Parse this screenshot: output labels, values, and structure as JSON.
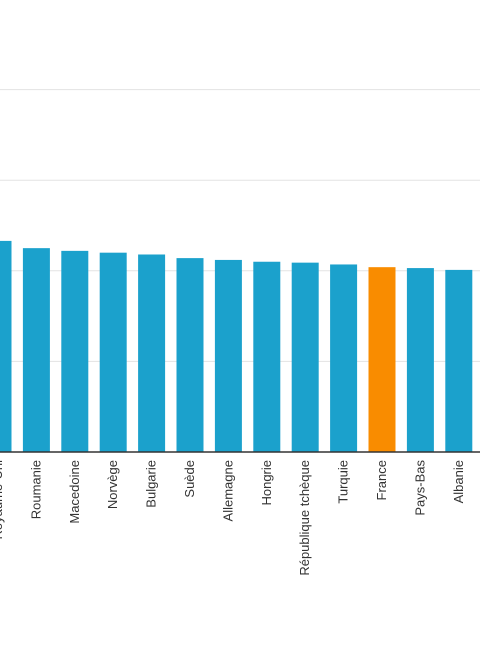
{
  "chart_data": {
    "type": "bar",
    "title": "",
    "xlabel": "",
    "ylabel": "",
    "categories": [
      "Royaume-Uni",
      "Roumanie",
      "Macedoine",
      "Norvège",
      "Bulgarie",
      "Suède",
      "Allemagne",
      "Hongrie",
      "République tchèque",
      "Turquie",
      "France",
      "Pays-Bas",
      "Albanie"
    ],
    "values": [
      23.3,
      22.5,
      22.2,
      22.0,
      21.8,
      21.4,
      21.2,
      21.0,
      20.9,
      20.7,
      20.4,
      20.3,
      20.1
    ],
    "ylim": [
      0,
      50
    ],
    "grid": true,
    "highlight_category": "France",
    "colors": {
      "bar": "#1ba1cc",
      "highlight": "#f98c00",
      "grid": "#e3e3e3",
      "axis": "#333333"
    }
  }
}
